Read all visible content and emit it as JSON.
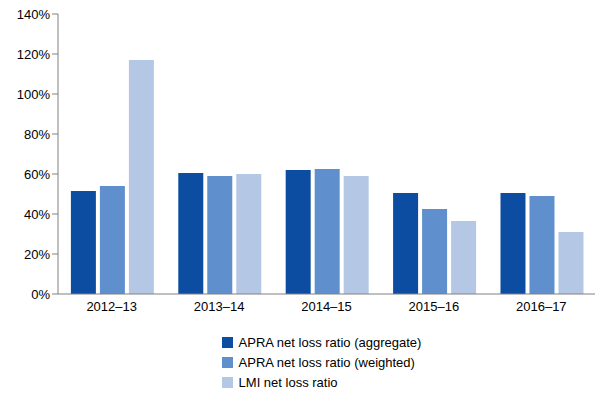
{
  "chart_data": {
    "type": "bar",
    "categories": [
      "2012–13",
      "2013–14",
      "2014–15",
      "2015–16",
      "2016–17"
    ],
    "series": [
      {
        "name": "APRA net loss ratio (aggregate)",
        "color": "#0c4da2",
        "values": [
          51.5,
          60.5,
          62,
          50.5,
          50.5
        ]
      },
      {
        "name": "APRA net loss ratio (weighted)",
        "color": "#5f8fcc",
        "values": [
          54,
          59,
          62.5,
          42.5,
          49
        ]
      },
      {
        "name": "LMI net loss ratio",
        "color": "#b4c8e6",
        "values": [
          117,
          60,
          59,
          36.5,
          31
        ]
      }
    ],
    "ylim": [
      0,
      140
    ],
    "yticks": [
      {
        "value": 0,
        "label": "0%"
      },
      {
        "value": 20,
        "label": "20%"
      },
      {
        "value": 40,
        "label": "40%"
      },
      {
        "value": 60,
        "label": "60%"
      },
      {
        "value": 80,
        "label": "80%"
      },
      {
        "value": 100,
        "label": "100%"
      },
      {
        "value": 120,
        "label": "120%"
      },
      {
        "value": 140,
        "label": "140%"
      }
    ],
    "grid": false
  }
}
